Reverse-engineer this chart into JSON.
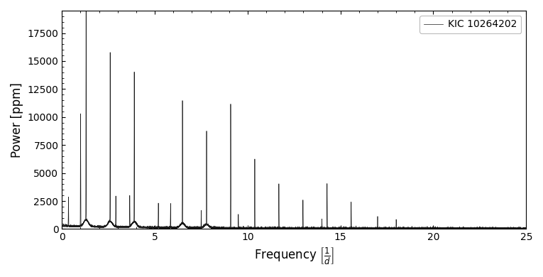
{
  "xlabel": "Frequency $\\left[\\frac{1}{d}\\right]$",
  "ylabel": "Power [ppm]",
  "legend_label": "KIC 10264202",
  "line_color": "#1a1a1a",
  "xlim": [
    0,
    25
  ],
  "ylim": [
    0,
    19500
  ],
  "yticks": [
    0,
    2500,
    5000,
    7500,
    10000,
    12500,
    15000,
    17500
  ],
  "xticks": [
    0,
    5,
    10,
    15,
    20,
    25
  ],
  "fundamental_freq": 1.298,
  "noise_level": 150,
  "background_color": "#ffffff",
  "figsize": [
    7.65,
    3.9
  ],
  "dpi": 100,
  "harmonic_peaks": [
    [
      1.0,
      10000
    ],
    [
      1.298,
      18700
    ],
    [
      2.596,
      15100
    ],
    [
      3.894,
      13400
    ],
    [
      5.192,
      2200
    ],
    [
      6.49,
      11000
    ],
    [
      7.788,
      8400
    ],
    [
      9.086,
      11000
    ],
    [
      10.384,
      6200
    ],
    [
      11.682,
      3900
    ],
    [
      12.98,
      2500
    ],
    [
      14.278,
      4000
    ],
    [
      15.576,
      2400
    ],
    [
      17.0,
      1100
    ]
  ],
  "small_peaks": [
    [
      0.35,
      2600
    ],
    [
      2.9,
      2800
    ],
    [
      3.65,
      2800
    ],
    [
      5.85,
      2200
    ],
    [
      7.5,
      1500
    ],
    [
      9.5,
      1200
    ],
    [
      14.0,
      800
    ],
    [
      18.0,
      800
    ]
  ]
}
